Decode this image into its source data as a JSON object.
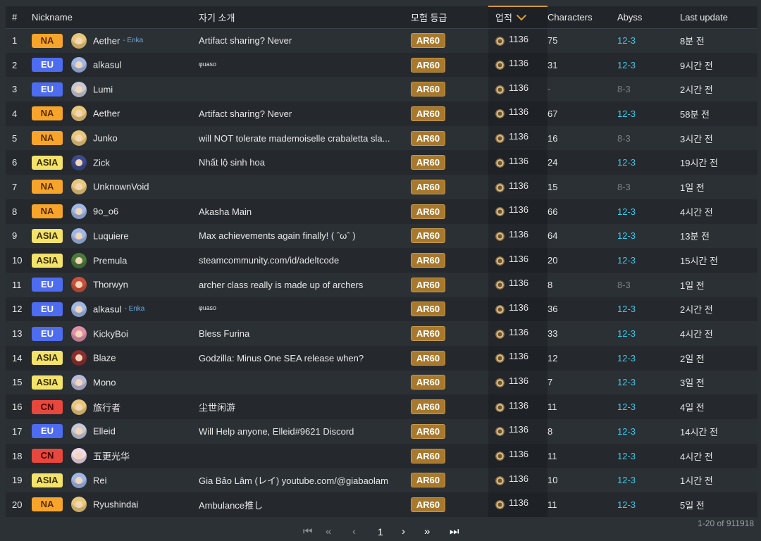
{
  "headers": {
    "num": "#",
    "nickname": "Nickname",
    "intro": "자기 소개",
    "rank": "모험 등급",
    "achievements": "업적",
    "characters": "Characters",
    "abyss": "Abyss",
    "last_update": "Last update"
  },
  "colors": {
    "NA": "#f7a52a",
    "EU": "#4d6cf0",
    "ASIA": "#f4e36a",
    "CN": "#e8473d",
    "ar_badge": "#a8782c",
    "abyss_cleared": "#3fc7e6",
    "sort_accent": "#e0a030"
  },
  "rows": [
    {
      "num": "1",
      "region": "NA",
      "avatar_color": "#e9c77a",
      "nickname": "Aether",
      "enka": "- Enka",
      "intro": "Artifact sharing? Never",
      "ar": "AR60",
      "ach": "1136",
      "chars": "75",
      "abyss": "12-3",
      "abyss_full": true,
      "updated": "8분 전"
    },
    {
      "num": "2",
      "region": "EU",
      "avatar_color": "#9fb7e6",
      "nickname": "alkasul",
      "enka": "",
      "intro": "ᵠᵘᵃˢᵒ",
      "ar": "AR60",
      "ach": "1136",
      "chars": "31",
      "abyss": "12-3",
      "abyss_full": true,
      "updated": "9시간 전"
    },
    {
      "num": "3",
      "region": "EU",
      "avatar_color": "#c9c9d6",
      "nickname": "Lumi",
      "enka": "",
      "intro": "",
      "ar": "AR60",
      "ach": "1136",
      "chars": "-",
      "abyss": "8-3",
      "abyss_full": false,
      "updated": "2시간 전"
    },
    {
      "num": "4",
      "region": "NA",
      "avatar_color": "#e9c77a",
      "nickname": "Aether",
      "enka": "",
      "intro": "Artifact sharing? Never",
      "ar": "AR60",
      "ach": "1136",
      "chars": "67",
      "abyss": "12-3",
      "abyss_full": true,
      "updated": "58분 전"
    },
    {
      "num": "5",
      "region": "NA",
      "avatar_color": "#e9c77a",
      "nickname": "Junko",
      "enka": "",
      "intro": "will NOT tolerate mademoiselle crabaletta sla...",
      "ar": "AR60",
      "ach": "1136",
      "chars": "16",
      "abyss": "8-3",
      "abyss_full": false,
      "updated": "3시간 전"
    },
    {
      "num": "6",
      "region": "ASIA",
      "avatar_color": "#3d4a8c",
      "nickname": "Zick",
      "enka": "",
      "intro": "Nhất lộ sinh hoa",
      "ar": "AR60",
      "ach": "1136",
      "chars": "24",
      "abyss": "12-3",
      "abyss_full": true,
      "updated": "19시간 전"
    },
    {
      "num": "7",
      "region": "NA",
      "avatar_color": "#e9c77a",
      "nickname": "UnknownVoid",
      "enka": "",
      "intro": "",
      "ar": "AR60",
      "ach": "1136",
      "chars": "15",
      "abyss": "8-3",
      "abyss_full": false,
      "updated": "1일 전"
    },
    {
      "num": "8",
      "region": "NA",
      "avatar_color": "#9fb7e6",
      "nickname": "9o_o6",
      "enka": "",
      "intro": "Akasha Main",
      "ar": "AR60",
      "ach": "1136",
      "chars": "66",
      "abyss": "12-3",
      "abyss_full": true,
      "updated": "4시간 전"
    },
    {
      "num": "9",
      "region": "ASIA",
      "avatar_color": "#9fb7e6",
      "nickname": "Luquiere",
      "enka": "",
      "intro": "Max achievements again finally! ( ˆωˆ )",
      "ar": "AR60",
      "ach": "1136",
      "chars": "64",
      "abyss": "12-3",
      "abyss_full": true,
      "updated": "13분 전"
    },
    {
      "num": "10",
      "region": "ASIA",
      "avatar_color": "#4c7a3a",
      "nickname": "Premula",
      "enka": "",
      "intro": "steamcommunity.com/id/adeltcode",
      "ar": "AR60",
      "ach": "1136",
      "chars": "20",
      "abyss": "12-3",
      "abyss_full": true,
      "updated": "15시간 전"
    },
    {
      "num": "11",
      "region": "EU",
      "avatar_color": "#c9503a",
      "nickname": "Thorwyn",
      "enka": "",
      "intro": "archer class really is made up of archers",
      "ar": "AR60",
      "ach": "1136",
      "chars": "8",
      "abyss": "8-3",
      "abyss_full": false,
      "updated": "1일 전"
    },
    {
      "num": "12",
      "region": "EU",
      "avatar_color": "#9fb7e6",
      "nickname": "alkasul",
      "enka": "- Enka",
      "intro": "ᵠᵘᵃˢᵒ",
      "ar": "AR60",
      "ach": "1136",
      "chars": "36",
      "abyss": "12-3",
      "abyss_full": true,
      "updated": "2시간 전"
    },
    {
      "num": "13",
      "region": "EU",
      "avatar_color": "#e08fa8",
      "nickname": "KickyBoi",
      "enka": "",
      "intro": "Bless Furina",
      "ar": "AR60",
      "ach": "1136",
      "chars": "33",
      "abyss": "12-3",
      "abyss_full": true,
      "updated": "4시간 전"
    },
    {
      "num": "14",
      "region": "ASIA",
      "avatar_color": "#8c2f2f",
      "nickname": "Blaze",
      "enka": "",
      "intro": "Godzilla: Minus One SEA release when?",
      "ar": "AR60",
      "ach": "1136",
      "chars": "12",
      "abyss": "12-3",
      "abyss_full": true,
      "updated": "2일 전"
    },
    {
      "num": "15",
      "region": "ASIA",
      "avatar_color": "#b9b9d9",
      "nickname": "Mono",
      "enka": "",
      "intro": "",
      "ar": "AR60",
      "ach": "1136",
      "chars": "7",
      "abyss": "12-3",
      "abyss_full": true,
      "updated": "3일 전"
    },
    {
      "num": "16",
      "region": "CN",
      "avatar_color": "#e9c77a",
      "nickname": "旅行者",
      "enka": "",
      "intro": "尘世闲游",
      "ar": "AR60",
      "ach": "1136",
      "chars": "11",
      "abyss": "12-3",
      "abyss_full": true,
      "updated": "4일 전"
    },
    {
      "num": "17",
      "region": "EU",
      "avatar_color": "#c9c9d6",
      "nickname": "Elleid",
      "enka": "",
      "intro": "Will Help anyone, Elleid#9621 Discord",
      "ar": "AR60",
      "ach": "1136",
      "chars": "8",
      "abyss": "12-3",
      "abyss_full": true,
      "updated": "14시간 전"
    },
    {
      "num": "18",
      "region": "CN",
      "avatar_color": "#f0d8e8",
      "nickname": "五更光华",
      "enka": "",
      "intro": "",
      "ar": "AR60",
      "ach": "1136",
      "chars": "11",
      "abyss": "12-3",
      "abyss_full": true,
      "updated": "4시간 전"
    },
    {
      "num": "19",
      "region": "ASIA",
      "avatar_color": "#9fb7e6",
      "nickname": "Rei",
      "enka": "",
      "intro": "Gia Bảo Lâm (レイ) youtube.com/@giabaolam",
      "ar": "AR60",
      "ach": "1136",
      "chars": "10",
      "abyss": "12-3",
      "abyss_full": true,
      "updated": "1시간 전"
    },
    {
      "num": "20",
      "region": "NA",
      "avatar_color": "#e9c77a",
      "nickname": "Ryushindai",
      "enka": "",
      "intro": "Ambulance推し",
      "ar": "AR60",
      "ach": "1136",
      "chars": "11",
      "abyss": "12-3",
      "abyss_full": true,
      "updated": "5일 전"
    }
  ],
  "pagination": {
    "first_icon": "first-page-icon",
    "prev_fast_icon": "double-chevron-left-icon",
    "prev_icon": "chevron-left-icon",
    "current_page": "1",
    "next_icon": "chevron-right-icon",
    "next_fast_icon": "double-chevron-right-icon",
    "last_icon": "last-page-icon",
    "range_text": "1-20 of 911918"
  }
}
